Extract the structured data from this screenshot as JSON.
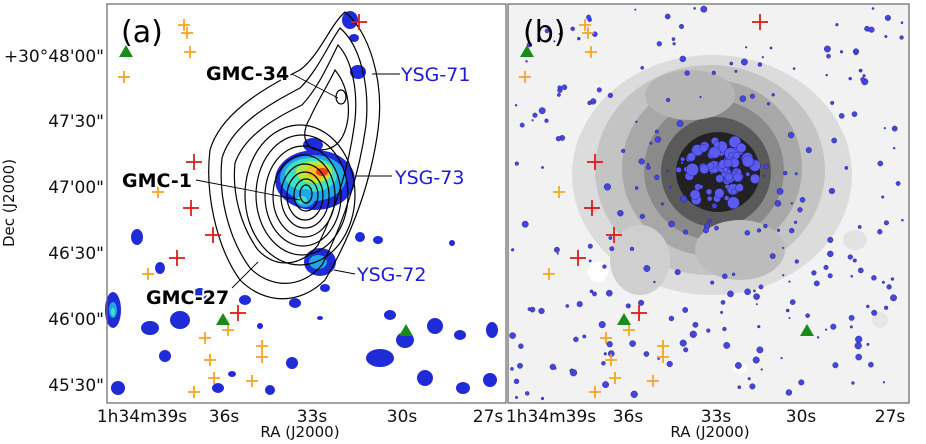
{
  "panels": [
    {
      "label": "(a)"
    },
    {
      "label": "(b)"
    }
  ],
  "axes": {
    "x_title": "RA (J2000)",
    "y_title": "Dec (J2000)",
    "x_ticks": [
      "1h34m39s",
      "36s",
      "33s",
      "30s",
      "27s"
    ],
    "y_ticks": [
      "+30°48'00\"",
      "47'30\"",
      "47'00\"",
      "46'30\"",
      "46'00\"",
      "45'30\""
    ]
  },
  "annotations": {
    "gmc": [
      "GMC-34",
      "GMC-1",
      "GMC-27"
    ],
    "ysg": [
      "YSG-71",
      "YSG-73",
      "YSG-72"
    ]
  },
  "colors": {
    "contour": "#000000",
    "cross_red": "#e01b1b",
    "cross_orange": "#f5a623",
    "triangle": "#1a8a1a",
    "ysg_text": "#1b1bd6",
    "star_fill": "#3b3bd8"
  }
}
